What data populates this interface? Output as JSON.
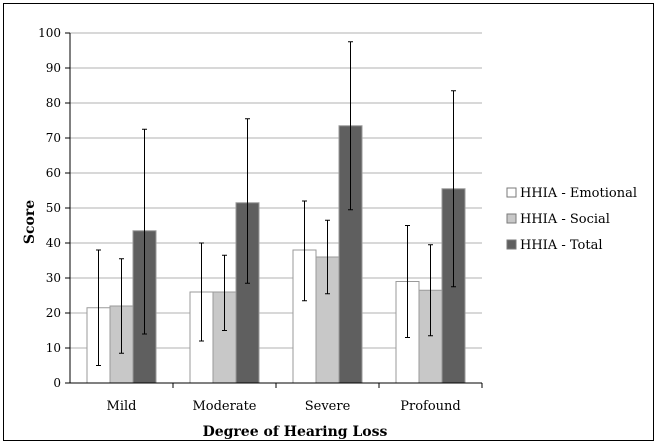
{
  "chart_data": {
    "type": "bar",
    "xlabel": "Degree of Hearing Loss",
    "ylabel": "Score",
    "ylim": [
      0,
      100
    ],
    "yticks": [
      0,
      10,
      20,
      30,
      40,
      50,
      60,
      70,
      80,
      90,
      100
    ],
    "grid": true,
    "legend_position": "right",
    "categories": [
      "Mild",
      "Moderate",
      "Severe",
      "Profound"
    ],
    "series": [
      {
        "name": "HHIA - Emotional",
        "color": "#ffffff",
        "values": [
          21.5,
          26,
          38,
          29
        ],
        "error_low": [
          5,
          12,
          23.5,
          13
        ],
        "error_high": [
          38,
          40,
          52,
          45
        ]
      },
      {
        "name": "HHIA - Social",
        "color": "#c8c8c8",
        "values": [
          22,
          26,
          36,
          26.5
        ],
        "error_low": [
          8.5,
          15,
          25.5,
          13.5
        ],
        "error_high": [
          35.5,
          36.5,
          46.5,
          39.5
        ]
      },
      {
        "name": "HHIA - Total",
        "color": "#5f5f5f",
        "values": [
          43.5,
          51.5,
          73.5,
          55.5
        ],
        "error_low": [
          14,
          28.5,
          49.5,
          27.5
        ],
        "error_high": [
          72.5,
          75.5,
          97.5,
          83.5
        ]
      }
    ]
  }
}
